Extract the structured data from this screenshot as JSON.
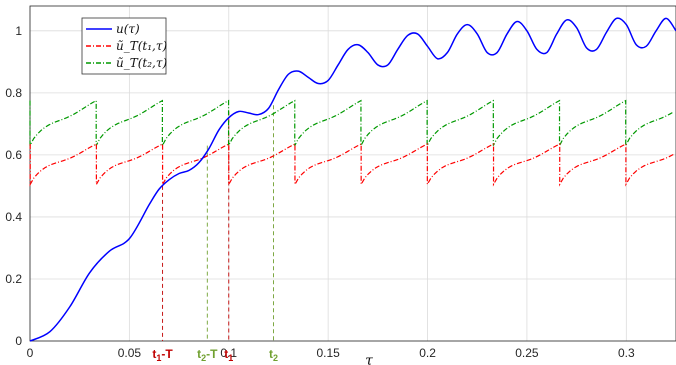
{
  "chart_data": {
    "type": "line",
    "xlabel": "τ",
    "ylabel": "",
    "xlim": [
      0,
      0.325
    ],
    "ylim": [
      0,
      1.08
    ],
    "grid": true,
    "legend_position": "top-left",
    "xticks": [
      0,
      0.05,
      0.1,
      0.15,
      0.2,
      0.25,
      0.3
    ],
    "xtick_labels": [
      "0",
      "0.05",
      "0.1",
      "0.15",
      "0.2",
      "0.25",
      "0.3"
    ],
    "yticks": [
      0,
      0.2,
      0.4,
      0.6,
      0.8,
      1
    ],
    "ytick_labels": [
      "0",
      "0.2",
      "0.4",
      "0.6",
      "0.8",
      "1"
    ],
    "colors": {
      "u": "#0000ff",
      "ut1": "#ff0000",
      "ut2": "#009900",
      "mark_t1": "#c00000",
      "mark_t2": "#70a030"
    },
    "series": [
      {
        "name": "u(τ)",
        "key": "u",
        "x": [
          0,
          0.01,
          0.02,
          0.03,
          0.04,
          0.05,
          0.06,
          0.065,
          0.07,
          0.075,
          0.08,
          0.085,
          0.09,
          0.095,
          0.1,
          0.105,
          0.11,
          0.115,
          0.12,
          0.125,
          0.13,
          0.135,
          0.14,
          0.145,
          0.15,
          0.155,
          0.16,
          0.165,
          0.17,
          0.175,
          0.18,
          0.185,
          0.19,
          0.195,
          0.2,
          0.205,
          0.21,
          0.215,
          0.22,
          0.225,
          0.23,
          0.235,
          0.24,
          0.245,
          0.25,
          0.255,
          0.26,
          0.265,
          0.27,
          0.275,
          0.28,
          0.285,
          0.29,
          0.295,
          0.3,
          0.305,
          0.31,
          0.315,
          0.32,
          0.325
        ],
        "y": [
          0,
          0.03,
          0.11,
          0.22,
          0.29,
          0.33,
          0.44,
          0.49,
          0.52,
          0.54,
          0.55,
          0.575,
          0.62,
          0.68,
          0.72,
          0.74,
          0.735,
          0.73,
          0.75,
          0.81,
          0.86,
          0.87,
          0.85,
          0.83,
          0.84,
          0.89,
          0.94,
          0.955,
          0.93,
          0.89,
          0.89,
          0.94,
          0.985,
          0.99,
          0.95,
          0.91,
          0.93,
          0.99,
          1.02,
          0.99,
          0.93,
          0.93,
          0.99,
          1.03,
          1.0,
          0.94,
          0.93,
          0.99,
          1.035,
          1.01,
          0.945,
          0.94,
          0.995,
          1.04,
          1.02,
          0.955,
          0.95,
          1.0,
          1.04,
          1.0
        ]
      },
      {
        "name": "ũ_T(t₁,τ)",
        "key": "ut1",
        "period": 0.0333,
        "phase": 0.0667,
        "low": 0.505,
        "high": 0.635,
        "sawtooth_start": 0.0
      },
      {
        "name": "ũ_T(t₂,τ)",
        "key": "ut2",
        "period": 0.0333,
        "phase": 0.0,
        "low": 0.63,
        "high": 0.775,
        "sawtooth_start": 0.0
      }
    ],
    "legend_labels": [
      "u(τ)",
      "ũ_T(t₁,τ)",
      "ũ_T(t₂,τ)"
    ],
    "annotations": [
      {
        "label": "t",
        "sub": "1",
        "suffix": "-T",
        "x": 0.0667,
        "y": 0.5,
        "color_key": "mark_t1"
      },
      {
        "label": "t",
        "sub": "2",
        "suffix": "-T",
        "x": 0.0892,
        "y": 0.63,
        "color_key": "mark_t2"
      },
      {
        "label": "t",
        "sub": "1",
        "suffix": "",
        "x": 0.1,
        "y": 0.74,
        "color_key": "mark_t1"
      },
      {
        "label": "t",
        "sub": "2",
        "suffix": "",
        "x": 0.1225,
        "y": 0.76,
        "color_key": "mark_t2"
      }
    ]
  }
}
